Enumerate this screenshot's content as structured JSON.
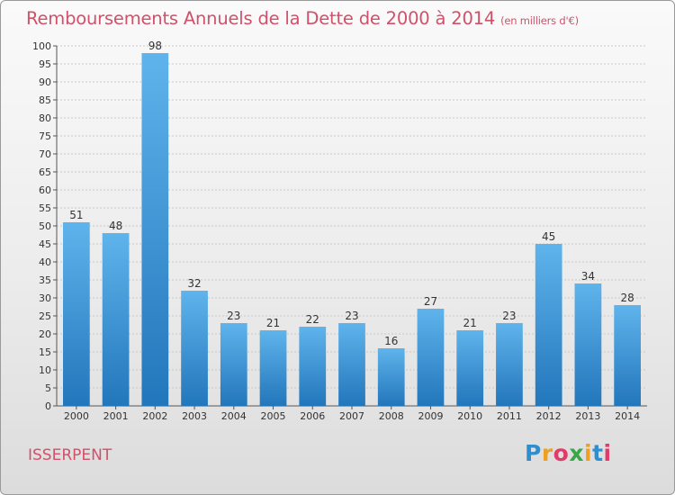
{
  "header": {
    "title": "Remboursements Annuels de la Dette de 2000 à 2014",
    "unit": "(en milliers d'€)"
  },
  "footer": {
    "commune": "ISSERPENT",
    "logo_letters": [
      "P",
      "r",
      "o",
      "x",
      "i",
      "t",
      "i"
    ],
    "logo_colors": [
      "#2e8fd0",
      "#f0a020",
      "#e23b6a",
      "#37a845",
      "#f0a020",
      "#2e8fd0",
      "#e23b6a"
    ]
  },
  "colors": {
    "bar_top": "#5fb4ec",
    "bar_bottom": "#2276bb",
    "grid": "#c8c8c8",
    "title": "#d2506a"
  },
  "chart_data": {
    "type": "bar",
    "title": "Remboursements Annuels de la Dette de 2000 à 2014",
    "xlabel": "",
    "ylabel": "",
    "categories": [
      "2000",
      "2001",
      "2002",
      "2003",
      "2004",
      "2005",
      "2006",
      "2007",
      "2008",
      "2009",
      "2010",
      "2011",
      "2012",
      "2013",
      "2014"
    ],
    "values": [
      51,
      48,
      98,
      32,
      23,
      21,
      22,
      23,
      16,
      27,
      21,
      23,
      45,
      34,
      28
    ],
    "ylim": [
      0,
      100
    ],
    "ytick_step": 5,
    "grid": true,
    "legend": "none"
  }
}
